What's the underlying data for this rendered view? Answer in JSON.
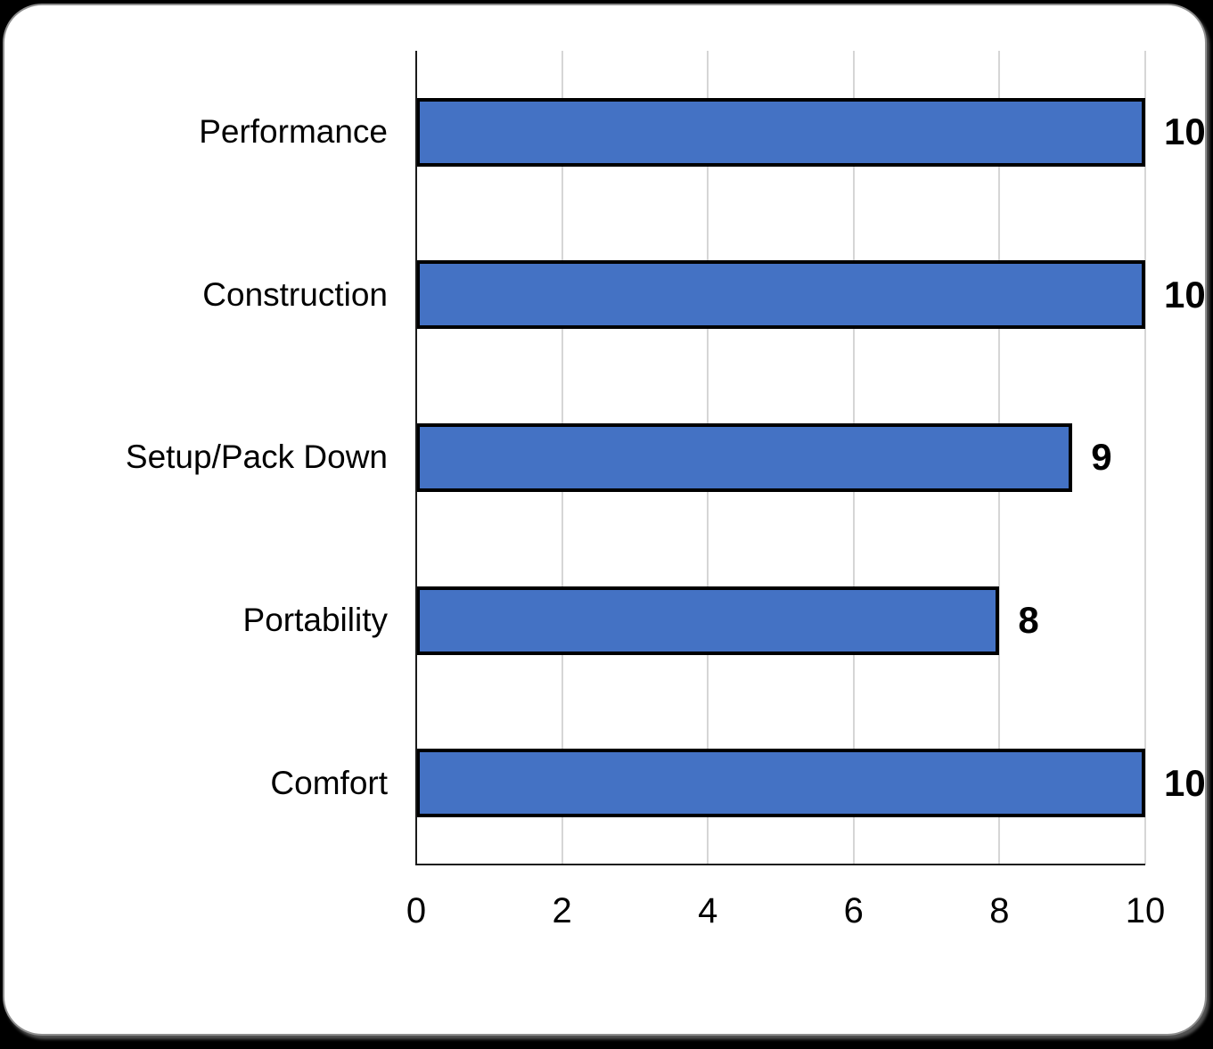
{
  "chart_data": {
    "type": "bar",
    "orientation": "horizontal",
    "title": "",
    "categories": [
      "Performance",
      "Construction",
      "Setup/Pack Down",
      "Portability",
      "Comfort"
    ],
    "values": [
      10,
      10,
      9,
      8,
      10
    ],
    "data_labels": [
      "10",
      "10",
      "9",
      "8",
      "10"
    ],
    "x_ticks": [
      "0",
      "2",
      "4",
      "6",
      "8",
      "10"
    ],
    "xlim": [
      0,
      10
    ],
    "grid": true,
    "legend": false,
    "data_label_position": "outside-end",
    "colors": {
      "bar_fill": "#4472C4",
      "bar_border": "#000000",
      "gridline": "#D6D6D6",
      "axis": "#1A1A1A",
      "text": "#000000",
      "card_background": "#FFFFFF",
      "card_border": "#8E8E8E",
      "page_background": "#000000"
    }
  }
}
